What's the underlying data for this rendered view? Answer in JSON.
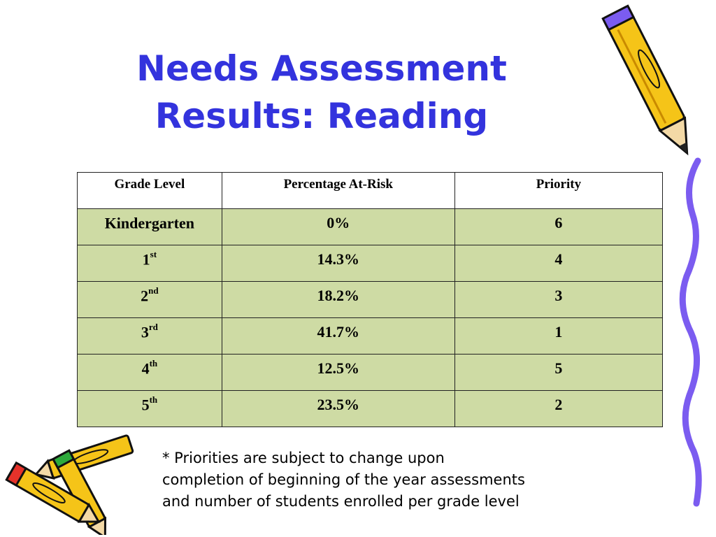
{
  "slide": {
    "title_lines": [
      "Needs Assessment",
      "Results: Reading"
    ]
  },
  "table": {
    "headers": [
      "Grade Level",
      "Percentage At-Risk",
      "Priority"
    ],
    "rows": [
      {
        "grade": "Kindergarten",
        "grade_suffix": "",
        "percent": "0%",
        "priority": "6"
      },
      {
        "grade": "1",
        "grade_suffix": "st",
        "percent": "14.3%",
        "priority": "4"
      },
      {
        "grade": "2",
        "grade_suffix": "nd",
        "percent": "18.2%",
        "priority": "3"
      },
      {
        "grade": "3",
        "grade_suffix": "rd",
        "percent": "41.7%",
        "priority": "1"
      },
      {
        "grade": "4",
        "grade_suffix": "th",
        "percent": "12.5%",
        "priority": "5"
      },
      {
        "grade": "5",
        "grade_suffix": "th",
        "percent": "23.5%",
        "priority": "2"
      }
    ],
    "row_fill_color": "#cedba4"
  },
  "footnote_lines": [
    "* Priorities are subject to change upon",
    "completion of beginning of the year assessments",
    "and number of students enrolled per grade level"
  ],
  "decorations": {
    "title_color": "#3333dd",
    "pencil_color": "#f5c418",
    "squiggle_color": "#7b5cf0",
    "icons": [
      "pencil-icon",
      "pencil-icon",
      "pencil-icon",
      "squiggle-line-icon"
    ]
  }
}
